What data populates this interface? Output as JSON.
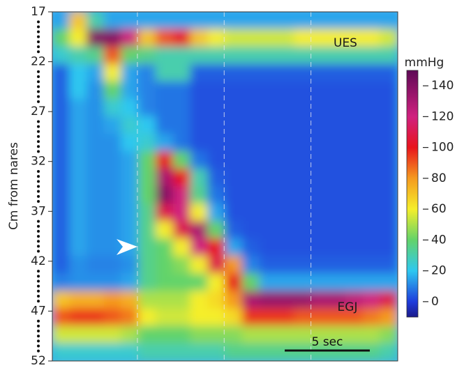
{
  "chart_data": {
    "type": "heatmap",
    "ylabel": "Cm from nares",
    "ylim": [
      17,
      52
    ],
    "yticks": [
      17,
      22,
      27,
      32,
      37,
      42,
      47,
      52
    ],
    "xlim": [
      0,
      20.3
    ],
    "vlines": [
      5,
      10.1,
      15.2
    ],
    "colorbar_label": "mmHg",
    "clim": [
      -10,
      150
    ],
    "colorbar_ticks": [
      0,
      20,
      40,
      60,
      80,
      100,
      120,
      140
    ],
    "colormap": [
      {
        "value": -10,
        "color": "#1c1a8a"
      },
      {
        "value": 0,
        "color": "#1e3cdc"
      },
      {
        "value": 20,
        "color": "#2ec8f0"
      },
      {
        "value": 40,
        "color": "#62d36a"
      },
      {
        "value": 60,
        "color": "#f5ee2a"
      },
      {
        "value": 80,
        "color": "#f59a1f"
      },
      {
        "value": 100,
        "color": "#e8141c"
      },
      {
        "value": 120,
        "color": "#d0207f"
      },
      {
        "value": 150,
        "color": "#5e0a56"
      }
    ],
    "annotations": [
      "UES",
      "EGJ"
    ],
    "scale_bar": {
      "label": "5 sec",
      "value": 5
    },
    "z": [
      [
        15,
        70,
        30,
        15,
        15,
        15,
        15,
        15,
        15,
        15,
        15,
        15,
        15,
        15,
        15,
        15,
        15,
        15,
        15,
        15
      ],
      [
        40,
        60,
        140,
        140,
        120,
        70,
        90,
        100,
        70,
        60,
        55,
        55,
        55,
        55,
        60,
        60,
        60,
        60,
        60,
        55
      ],
      [
        25,
        30,
        35,
        90,
        40,
        35,
        30,
        30,
        30,
        30,
        30,
        30,
        30,
        30,
        30,
        30,
        30,
        30,
        30,
        30
      ],
      [
        5,
        20,
        15,
        60,
        15,
        10,
        30,
        30,
        5,
        5,
        5,
        5,
        5,
        5,
        5,
        5,
        5,
        5,
        5,
        5
      ],
      [
        5,
        20,
        12,
        40,
        15,
        10,
        8,
        8,
        3,
        3,
        3,
        3,
        3,
        3,
        3,
        3,
        3,
        3,
        3,
        3
      ],
      [
        5,
        15,
        12,
        25,
        20,
        10,
        8,
        8,
        3,
        3,
        3,
        3,
        3,
        3,
        3,
        3,
        3,
        3,
        3,
        3
      ],
      [
        5,
        15,
        12,
        15,
        25,
        20,
        8,
        8,
        3,
        3,
        3,
        3,
        3,
        3,
        3,
        3,
        3,
        3,
        3,
        3
      ],
      [
        5,
        15,
        12,
        12,
        20,
        25,
        15,
        8,
        3,
        3,
        3,
        3,
        3,
        3,
        3,
        3,
        3,
        3,
        3,
        3
      ],
      [
        5,
        15,
        12,
        12,
        15,
        40,
        100,
        40,
        8,
        3,
        3,
        3,
        3,
        3,
        3,
        3,
        3,
        3,
        3,
        3
      ],
      [
        5,
        15,
        12,
        12,
        15,
        40,
        130,
        100,
        30,
        5,
        3,
        3,
        3,
        3,
        3,
        3,
        3,
        3,
        3,
        3
      ],
      [
        5,
        15,
        12,
        12,
        15,
        40,
        140,
        120,
        35,
        8,
        3,
        3,
        3,
        3,
        3,
        3,
        3,
        3,
        3,
        3
      ],
      [
        5,
        15,
        12,
        12,
        15,
        35,
        110,
        120,
        60,
        15,
        3,
        3,
        3,
        3,
        3,
        3,
        3,
        3,
        3,
        3
      ],
      [
        5,
        15,
        12,
        12,
        15,
        35,
        60,
        110,
        130,
        40,
        5,
        3,
        3,
        3,
        3,
        3,
        3,
        3,
        3,
        3
      ],
      [
        5,
        15,
        12,
        12,
        15,
        35,
        40,
        60,
        120,
        100,
        15,
        5,
        3,
        3,
        3,
        3,
        3,
        3,
        3,
        3
      ],
      [
        5,
        12,
        10,
        10,
        12,
        35,
        40,
        45,
        60,
        110,
        80,
        10,
        5,
        5,
        5,
        5,
        5,
        5,
        5,
        5
      ],
      [
        10,
        12,
        12,
        12,
        15,
        35,
        40,
        40,
        40,
        60,
        100,
        40,
        15,
        15,
        15,
        15,
        15,
        15,
        15,
        15
      ],
      [
        70,
        75,
        75,
        80,
        75,
        50,
        50,
        50,
        60,
        65,
        80,
        130,
        135,
        135,
        135,
        130,
        130,
        125,
        120,
        110
      ],
      [
        90,
        95,
        95,
        90,
        85,
        60,
        55,
        55,
        60,
        60,
        65,
        95,
        95,
        95,
        90,
        90,
        90,
        90,
        85,
        80
      ],
      [
        55,
        55,
        55,
        55,
        50,
        40,
        40,
        40,
        45,
        45,
        45,
        50,
        50,
        50,
        50,
        50,
        50,
        50,
        50,
        45
      ],
      [
        25,
        25,
        25,
        25,
        25,
        30,
        30,
        30,
        30,
        30,
        35,
        35,
        35,
        35,
        35,
        35,
        35,
        35,
        35,
        30
      ]
    ]
  }
}
